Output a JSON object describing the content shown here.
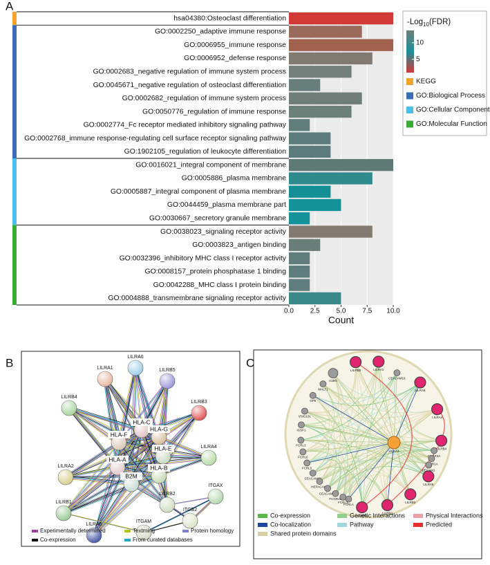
{
  "panel_labels": [
    "A",
    "B",
    "C"
  ],
  "chart_data": {
    "type": "barh",
    "categories": [
      "hsa04380:Osteoclast differentiation",
      "GO:0002250_adaptive immune response",
      "GO:0006955_immune response",
      "GO:0006952_defense response",
      "GO:0002683_negative regulation of immune system process",
      "GO:0045671_negative regulation of osteoclast differentiation",
      "GO:0002682_regulation of immune system process",
      "GO:0050776_regulation of immune response",
      "GO:0002774_Fc receptor mediated inhibitory signaling pathway",
      "GO:0002768_immune response-regulating cell surface receptor signaling pathway",
      "GO:1902105_regulation of leukocyte differentiation",
      "GO:0016021_integral component of membrane",
      "GO:0005886_plasma membrane",
      "GO:0005887_integral component of plasma membrane",
      "GO:0044459_plasma membrane part",
      "GO:0030667_secretory granule membrane",
      "GO:0038023_signaling receptor activity",
      "GO:0003823_antigen binding",
      "GO:0032396_inhibitory MHC class I receptor activity",
      "GO:0008157_protein phosphatase 1 binding",
      "GO:0042288_MHC class I protein binding",
      "GO:0004888_transmembrane signaling receptor activity"
    ],
    "values": [
      10,
      7,
      10,
      8,
      6,
      3,
      7,
      6,
      2,
      4,
      4,
      10,
      8,
      4,
      5,
      2,
      8,
      3,
      2,
      2,
      2,
      5
    ],
    "colors": [
      "#d13a36",
      "#9a6a5c",
      "#a0624f",
      "#807a72",
      "#737f7a",
      "#687e7a",
      "#6f7e78",
      "#6d7f79",
      "#607d7a",
      "#5b7c7a",
      "#5c7c7b",
      "#5f7a75",
      "#2e8a8c",
      "#148f95",
      "#14929a",
      "#139299",
      "#837a72",
      "#6a7e79",
      "#607c7b",
      "#5f7d7c",
      "#5f7d7c",
      "#3b8888"
    ],
    "category_group": [
      "KEGG",
      "GO:Biological Process",
      "GO:Biological Process",
      "GO:Biological Process",
      "GO:Biological Process",
      "GO:Biological Process",
      "GO:Biological Process",
      "GO:Biological Process",
      "GO:Biological Process",
      "GO:Biological Process",
      "GO:Biological Process",
      "GO:Cellular Component",
      "GO:Cellular Component",
      "GO:Cellular Component",
      "GO:Cellular Component",
      "GO:Cellular Component",
      "GO:Molecular Function",
      "GO:Molecular Function",
      "GO:Molecular Function",
      "GO:Molecular Function",
      "GO:Molecular Function",
      "GO:Molecular Function"
    ],
    "groups": [
      {
        "name": "KEGG",
        "color": "#f4a22c"
      },
      {
        "name": "GO:Biological Process",
        "color": "#3a6db5"
      },
      {
        "name": "GO:Cellular Component",
        "color": "#4cbfee"
      },
      {
        "name": "GO:Molecular Function",
        "color": "#3aaa38"
      }
    ],
    "xlabel": "Count",
    "xlim": [
      0,
      10
    ],
    "xticks": [
      {
        "value": 0,
        "label": "0.0"
      },
      2.5,
      {
        "value": 5,
        "label": "5.0"
      },
      7.5,
      {
        "value": 10,
        "label": "10.0"
      }
    ],
    "grid": true,
    "colorbar": {
      "title": [
        "-Log",
        "10",
        "(FDR)"
      ],
      "clim": [
        1,
        13.7
      ],
      "ticks": [
        10,
        5
      ],
      "colors": [
        "#6f7f79",
        "#1a9099",
        "#d13a36"
      ]
    }
  },
  "string_network": {
    "nodes": [
      "LILRA1",
      "LILRA6",
      "LILRB5",
      "LILRB4",
      "LILRB3",
      "HLA-C",
      "HLA-G",
      "HLA-F",
      "HLA-E",
      "LILRA4",
      "LILRA2",
      "HLA-A",
      "HLA-B",
      "B2M",
      "LILRB1",
      "LILRB2",
      "ITGAX",
      "LILRA5",
      "ITGAM",
      "ITGB2"
    ],
    "legend": [
      {
        "label": "Experimentally determined",
        "color": "#9b3fa0"
      },
      {
        "label": "Textming",
        "color": "#b3c41f"
      },
      {
        "label": "Protein homology",
        "color": "#7f7fd0"
      },
      {
        "label": "Co-expression",
        "color": "#111111"
      },
      {
        "label": "From curated databases",
        "color": "#2aa3c0"
      }
    ]
  },
  "genemania_network": {
    "center": "LILRA2",
    "query_nodes": [
      "LILRB5",
      "LILRA1",
      "LILRA6",
      "LILRA4",
      "LILRB4",
      "LILRA5",
      "LILRB3",
      "LILRB2",
      "LILRB1"
    ],
    "related_nodes": [
      "A1BG",
      "MALT1",
      "CEACAM16",
      "GP6",
      "VSIG10L",
      "IGSF1",
      "FCRL3",
      "FCRL6",
      "FCRL5",
      "CEACAM18",
      "HEPACAM2",
      "CEACAM20",
      "FCGR2B",
      "FCRLA",
      "FCRL1",
      "FCGR3A",
      "FCGR1A",
      "PECAM1"
    ],
    "legend": [
      {
        "label": "Co-expression",
        "color": "#5ab849"
      },
      {
        "label": "Genetic Interactions",
        "color": "#8fd08a"
      },
      {
        "label": "Physical Interactions",
        "color": "#eaa0a5"
      },
      {
        "label": "Co-localization",
        "color": "#1c48a0"
      },
      {
        "label": "Pathway",
        "color": "#9ed8e0"
      },
      {
        "label": "Predicted",
        "color": "#e8312c"
      },
      {
        "label": "Shared protein domains",
        "color": "#d8d0a0"
      }
    ]
  }
}
